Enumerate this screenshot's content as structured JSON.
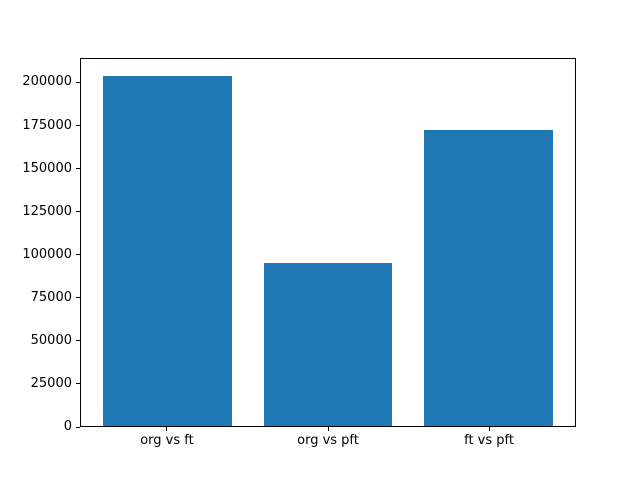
{
  "chart_data": {
    "type": "bar",
    "categories": [
      "org vs ft",
      "org vs pft",
      "ft vs pft"
    ],
    "values": [
      204000,
      95000,
      173000
    ],
    "title": "",
    "xlabel": "",
    "ylabel": "",
    "ylim": [
      0,
      214200
    ],
    "yticks": [
      0,
      25000,
      50000,
      75000,
      100000,
      125000,
      150000,
      175000,
      200000
    ],
    "bar_color": "#1f77b4",
    "grid": false,
    "legend": false
  }
}
